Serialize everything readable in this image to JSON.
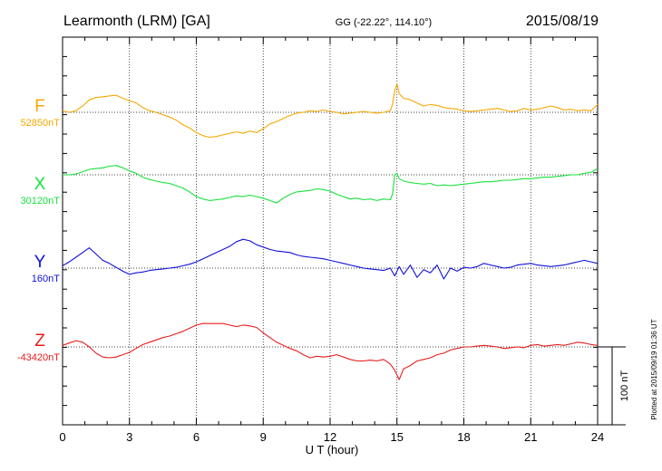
{
  "header": {
    "station": "Learmonth (LRM)  [GA]",
    "coords": "GG (-22.22°, 114.10°)",
    "date": "2015/08/19"
  },
  "plotted_note": "Plotted at 2015/09/19 01:36 UT",
  "scale_label": "100 nT",
  "chart_data": {
    "type": "line",
    "xlabel": "U T (hour)",
    "xlim": [
      0,
      24
    ],
    "xticks": [
      "0",
      "3",
      "6",
      "9",
      "12",
      "15",
      "18",
      "21",
      "24"
    ],
    "scale_bar_nT": 100,
    "grid": true,
    "series": [
      {
        "name": "F",
        "baseline_label": "52850nT",
        "color": "#f5a800",
        "x": [
          0,
          0.3,
          0.6,
          0.9,
          1.2,
          1.5,
          1.8,
          2.1,
          2.4,
          2.7,
          3.0,
          3.3,
          3.6,
          3.9,
          4.2,
          4.5,
          4.8,
          5.1,
          5.4,
          5.7,
          6.0,
          6.3,
          6.6,
          6.9,
          7.2,
          7.5,
          7.8,
          8.1,
          8.4,
          8.7,
          9.0,
          9.3,
          9.6,
          9.9,
          10.2,
          10.5,
          10.8,
          11.1,
          11.4,
          11.7,
          12.0,
          12.3,
          12.6,
          12.9,
          13.2,
          13.5,
          13.8,
          14.1,
          14.4,
          14.7,
          14.8,
          14.9,
          15.0,
          15.1,
          15.3,
          15.6,
          15.9,
          16.2,
          16.5,
          16.8,
          17.1,
          17.4,
          17.7,
          18.0,
          18.3,
          18.6,
          18.9,
          19.2,
          19.5,
          19.8,
          20.1,
          20.4,
          20.7,
          21.0,
          21.3,
          21.6,
          21.9,
          22.2,
          22.5,
          22.8,
          23.1,
          23.4,
          23.7,
          24.0
        ],
        "y": [
          2,
          0,
          2,
          8,
          16,
          19,
          20,
          21,
          22,
          18,
          15,
          12,
          6,
          2,
          0,
          -3,
          -6,
          -10,
          -16,
          -20,
          -26,
          -30,
          -32,
          -31,
          -29,
          -27,
          -25,
          -27,
          -24,
          -26,
          -21,
          -15,
          -12,
          -8,
          -4,
          -1,
          0,
          2,
          1,
          3,
          1,
          0,
          -2,
          -1,
          0,
          1,
          0,
          -1,
          0,
          2,
          10,
          28,
          36,
          24,
          18,
          16,
          12,
          8,
          10,
          9,
          6,
          5,
          4,
          2,
          1,
          2,
          3,
          4,
          5,
          3,
          1,
          2,
          5,
          3,
          4,
          6,
          8,
          6,
          3,
          4,
          2,
          3,
          2,
          10
        ]
      },
      {
        "name": "X",
        "baseline_label": "30120nT",
        "color": "#17e13c",
        "x": [
          0,
          0.3,
          0.6,
          0.9,
          1.2,
          1.5,
          1.8,
          2.1,
          2.4,
          2.7,
          3.0,
          3.3,
          3.6,
          3.9,
          4.2,
          4.5,
          4.8,
          5.1,
          5.4,
          5.7,
          6.0,
          6.3,
          6.6,
          6.9,
          7.2,
          7.5,
          7.8,
          8.1,
          8.4,
          8.7,
          9.0,
          9.3,
          9.6,
          9.9,
          10.2,
          10.5,
          10.8,
          11.1,
          11.4,
          11.7,
          12.0,
          12.3,
          12.6,
          12.9,
          13.2,
          13.5,
          13.8,
          14.1,
          14.4,
          14.7,
          14.8,
          14.9,
          15.0,
          15.1,
          15.3,
          15.6,
          15.9,
          16.2,
          16.5,
          16.8,
          17.1,
          17.4,
          17.7,
          18.0,
          18.3,
          18.6,
          18.9,
          19.2,
          19.5,
          19.8,
          20.1,
          20.4,
          20.7,
          21.0,
          21.3,
          21.6,
          21.9,
          22.2,
          22.5,
          22.8,
          23.1,
          23.4,
          23.7,
          24.0
        ],
        "y": [
          0,
          0,
          1,
          4,
          7,
          8,
          9,
          11,
          12,
          9,
          5,
          2,
          -3,
          -6,
          -8,
          -10,
          -11,
          -14,
          -17,
          -22,
          -28,
          -31,
          -33,
          -32,
          -31,
          -29,
          -27,
          -28,
          -26,
          -28,
          -30,
          -33,
          -36,
          -30,
          -25,
          -22,
          -21,
          -20,
          -18,
          -19,
          -21,
          -25,
          -28,
          -31,
          -30,
          -32,
          -31,
          -33,
          -31,
          -32,
          -25,
          0,
          2,
          -5,
          -8,
          -10,
          -11,
          -12,
          -11,
          -14,
          -13,
          -14,
          -13,
          -12,
          -11,
          -10,
          -9,
          -9,
          -8,
          -7,
          -7,
          -6,
          -5,
          -5,
          -4,
          -3,
          -3,
          -2,
          -1,
          0,
          0,
          2,
          3,
          8
        ]
      },
      {
        "name": "Y",
        "baseline_label": "160nT",
        "color": "#1010d8",
        "x": [
          0,
          0.3,
          0.6,
          0.9,
          1.2,
          1.5,
          1.8,
          2.1,
          2.4,
          2.7,
          3.0,
          3.3,
          3.6,
          3.9,
          4.2,
          4.5,
          4.8,
          5.1,
          5.4,
          5.7,
          6.0,
          6.3,
          6.6,
          6.9,
          7.2,
          7.5,
          7.8,
          8.1,
          8.4,
          8.7,
          9.0,
          9.3,
          9.6,
          9.9,
          10.2,
          10.5,
          10.8,
          11.1,
          11.4,
          11.7,
          12.0,
          12.3,
          12.6,
          12.9,
          13.2,
          13.5,
          13.8,
          14.1,
          14.4,
          14.7,
          14.9,
          15.1,
          15.3,
          15.6,
          15.9,
          16.2,
          16.5,
          16.8,
          17.1,
          17.4,
          17.7,
          18.0,
          18.3,
          18.6,
          18.9,
          19.2,
          19.5,
          19.8,
          20.1,
          20.4,
          20.7,
          21.0,
          21.3,
          21.6,
          21.9,
          22.2,
          22.5,
          22.8,
          23.1,
          23.4,
          23.7,
          24.0
        ],
        "y": [
          3,
          8,
          14,
          20,
          26,
          18,
          10,
          6,
          1,
          -4,
          -8,
          -6,
          -5,
          -3,
          -2,
          -1,
          0,
          1,
          3,
          5,
          8,
          12,
          16,
          20,
          24,
          28,
          34,
          37,
          35,
          30,
          27,
          24,
          22,
          21,
          20,
          17,
          15,
          14,
          13,
          12,
          10,
          8,
          6,
          4,
          2,
          0,
          -1,
          -2,
          -3,
          0,
          -10,
          2,
          -8,
          4,
          -12,
          -2,
          -6,
          4,
          -14,
          0,
          -4,
          1,
          0,
          2,
          6,
          4,
          2,
          0,
          1,
          4,
          5,
          6,
          4,
          3,
          2,
          3,
          4,
          6,
          8,
          10,
          8,
          6
        ]
      },
      {
        "name": "Z",
        "baseline_label": "-43420nT",
        "color": "#e81c1c",
        "x": [
          0,
          0.3,
          0.6,
          0.9,
          1.2,
          1.5,
          1.8,
          2.1,
          2.4,
          2.7,
          3.0,
          3.3,
          3.6,
          3.9,
          4.2,
          4.5,
          4.8,
          5.1,
          5.4,
          5.7,
          6.0,
          6.3,
          6.6,
          6.9,
          7.2,
          7.5,
          7.8,
          8.1,
          8.4,
          8.7,
          9.0,
          9.3,
          9.6,
          9.9,
          10.2,
          10.5,
          10.8,
          11.1,
          11.4,
          11.7,
          12.0,
          12.3,
          12.6,
          12.9,
          13.2,
          13.5,
          13.8,
          14.1,
          14.4,
          14.7,
          14.9,
          15.1,
          15.3,
          15.6,
          15.9,
          16.2,
          16.5,
          16.8,
          17.1,
          17.4,
          17.7,
          18.0,
          18.3,
          18.6,
          18.9,
          19.2,
          19.5,
          19.8,
          20.1,
          20.4,
          20.7,
          21.0,
          21.3,
          21.6,
          21.9,
          22.2,
          22.5,
          22.8,
          23.1,
          23.4,
          23.7,
          24.0
        ],
        "y": [
          2,
          5,
          8,
          6,
          0,
          -8,
          -13,
          -14,
          -13,
          -10,
          -7,
          -2,
          3,
          6,
          9,
          12,
          14,
          17,
          20,
          24,
          28,
          30,
          30,
          30,
          30,
          28,
          26,
          28,
          27,
          25,
          18,
          12,
          6,
          2,
          -2,
          -5,
          -10,
          -14,
          -12,
          -13,
          -12,
          -10,
          -13,
          -16,
          -18,
          -18,
          -17,
          -18,
          -16,
          -22,
          -30,
          -42,
          -28,
          -24,
          -18,
          -16,
          -14,
          -10,
          -8,
          -4,
          -2,
          0,
          0,
          1,
          2,
          1,
          0,
          -2,
          -1,
          0,
          -1,
          2,
          3,
          1,
          2,
          3,
          2,
          4,
          6,
          5,
          3,
          2
        ]
      }
    ]
  }
}
